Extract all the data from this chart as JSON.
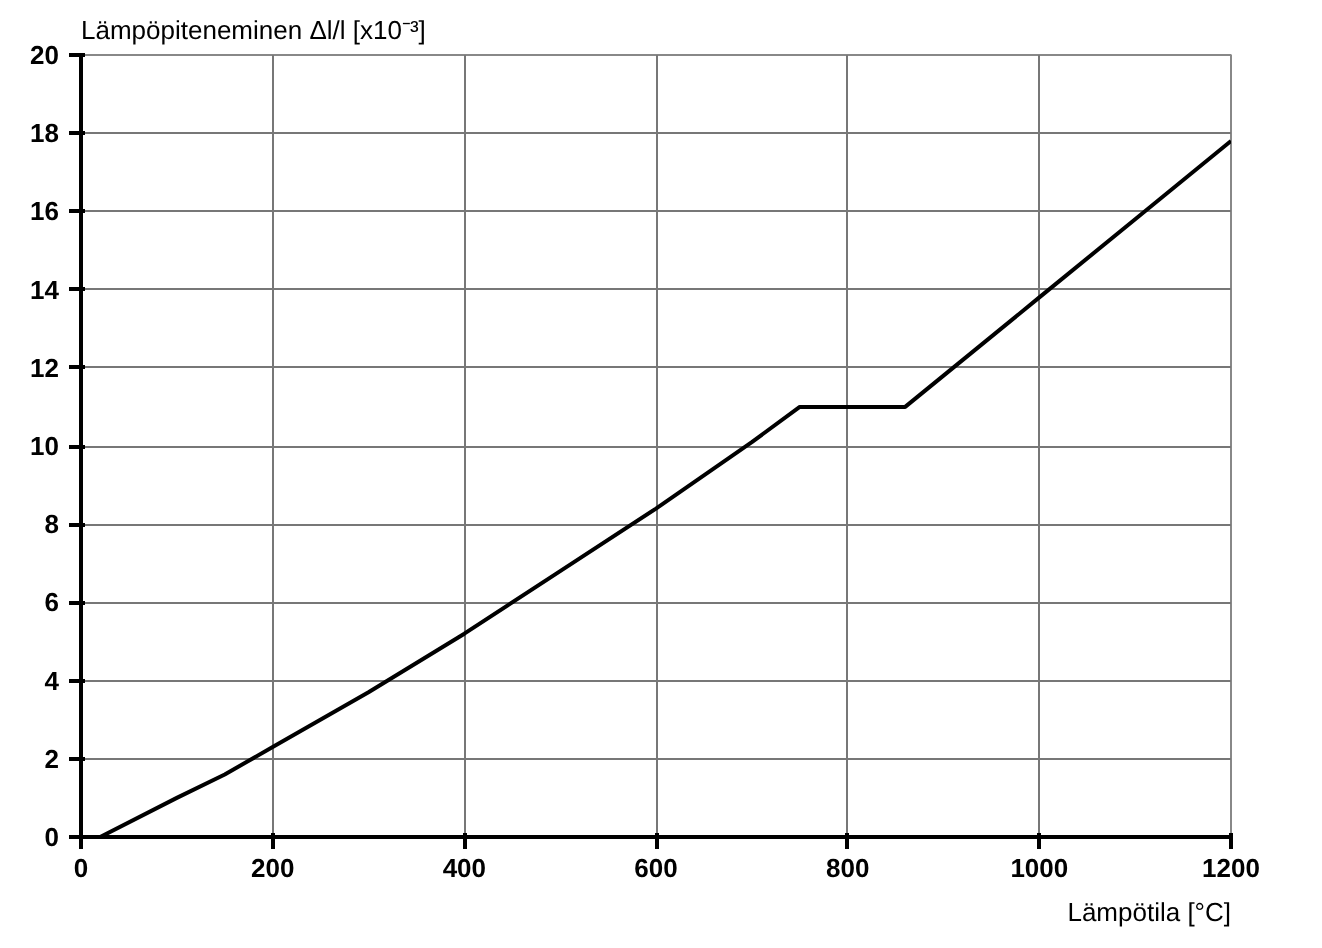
{
  "chart_data": {
    "type": "line",
    "xlabel": "Lämpötila [°C]",
    "ylabel": "Lämpöpiteneminen Δl/l [x10⁻³]",
    "x": [
      20,
      100,
      150,
      200,
      300,
      400,
      500,
      600,
      700,
      750,
      860,
      900,
      1000,
      1100,
      1200
    ],
    "series": [
      {
        "color": "#000000",
        "values": [
          0,
          1.0,
          1.6,
          2.3,
          3.7,
          5.2,
          6.8,
          8.4,
          10.1,
          11.0,
          11.0,
          11.8,
          13.8,
          15.8,
          17.8
        ]
      }
    ],
    "xlim": [
      0,
      1200
    ],
    "ylim": [
      0,
      20
    ],
    "xticks": [
      0,
      200,
      400,
      600,
      800,
      1000,
      1200
    ],
    "yticks": [
      0,
      2,
      4,
      6,
      8,
      10,
      12,
      14,
      16,
      18,
      20
    ],
    "grid": true,
    "marker": "none",
    "line_style": "solid"
  }
}
